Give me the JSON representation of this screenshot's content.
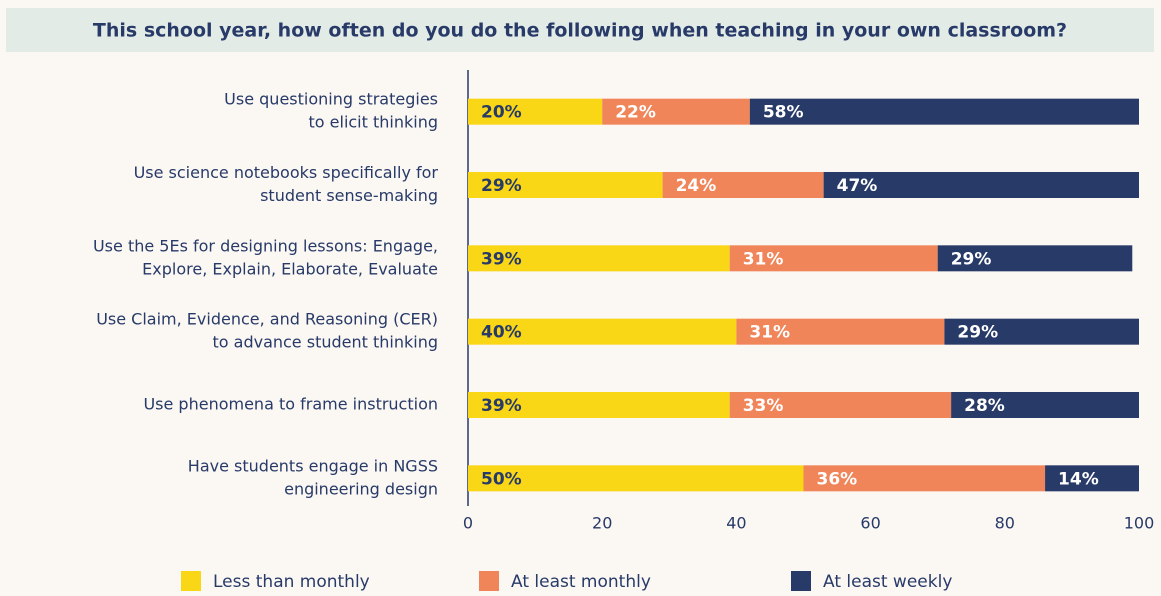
{
  "chart_data": {
    "type": "bar",
    "orientation": "horizontal",
    "stacked": true,
    "title": "This school year, how often do you do the following when teaching in your own classroom?",
    "categories": [
      [
        "Use questioning strategies",
        "to elicit thinking"
      ],
      [
        "Use science notebooks specifically for",
        "student sense-making"
      ],
      [
        "Use the 5Es for designing lessons: Engage,",
        "Explore, Explain, Elaborate, Evaluate"
      ],
      [
        "Use Claim, Evidence, and Reasoning (CER)",
        "to advance student thinking"
      ],
      [
        "Use phenomena to frame instruction"
      ],
      [
        "Have students engage in NGSS",
        "engineering design"
      ]
    ],
    "series": [
      {
        "name": "Less than monthly",
        "color": "#f9d616",
        "values": [
          20,
          29,
          39,
          40,
          39,
          50
        ],
        "value_labels": [
          "20%",
          "29%",
          "39%",
          "40%",
          "39%",
          "50%"
        ]
      },
      {
        "name": "At least monthly",
        "color": "#f0855a",
        "values": [
          22,
          24,
          31,
          31,
          33,
          36
        ],
        "value_labels": [
          "22%",
          "24%",
          "31%",
          "31%",
          "33%",
          "36%"
        ]
      },
      {
        "name": "At least weekly",
        "color": "#273a68",
        "values": [
          58,
          47,
          29,
          29,
          28,
          14
        ],
        "value_labels": [
          "58%",
          "47%",
          "29%",
          "29%",
          "28%",
          "14%"
        ]
      }
    ],
    "xlim": [
      0,
      100
    ],
    "xticks": [
      0,
      20,
      40,
      60,
      80,
      100
    ],
    "legend": "bottom"
  }
}
